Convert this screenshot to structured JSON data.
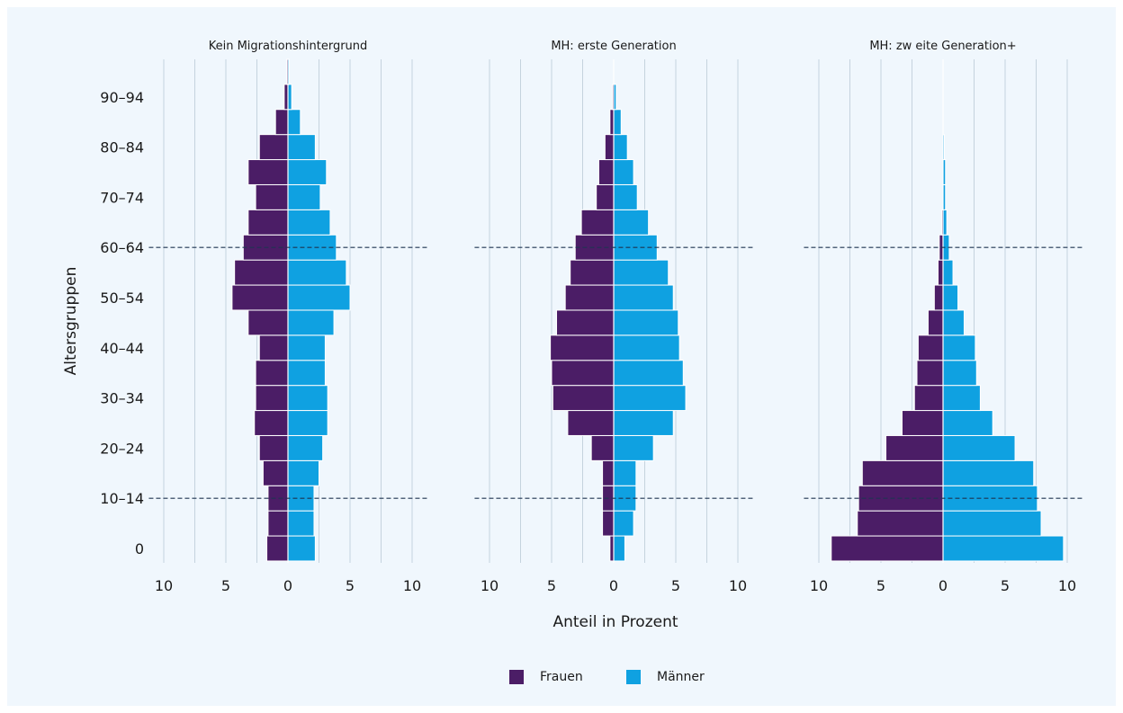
{
  "chart_data": {
    "type": "bar",
    "orientation": "horizontal",
    "subtype": "population-pyramid",
    "ylabel": "Altersgruppen",
    "xlabel": "Anteil in Prozent",
    "xlim": [
      -10,
      10
    ],
    "x_ticks": [
      "10",
      "5",
      "0",
      "5",
      "10"
    ],
    "y_tick_labels": [
      "0",
      "10–14",
      "20–24",
      "30–34",
      "40–44",
      "50–54",
      "60–64",
      "70–74",
      "80–84",
      "90–94"
    ],
    "age_groups": [
      "0-4",
      "5-9",
      "10-14",
      "15-19",
      "20-24",
      "25-29",
      "30-34",
      "35-39",
      "40-44",
      "45-49",
      "50-54",
      "55-59",
      "60-64",
      "65-69",
      "70-74",
      "75-79",
      "80-84",
      "85-89",
      "90-94",
      "95+"
    ],
    "reference_lines_at_age": [
      12.5,
      62.5
    ],
    "grid": true,
    "legend_position": "bottom",
    "colors": {
      "frauen": "#4b1d66",
      "maenner": "#0fa1e1",
      "background": "#f0f7fd",
      "grid": "#c5d3de",
      "reference_line": "#1f3552"
    },
    "legend": {
      "frauen": "Frauen",
      "maenner": "Männer"
    },
    "panels": [
      {
        "title": "Kein Migrationshintergrund",
        "series": [
          {
            "name": "Frauen",
            "values": [
              1.7,
              1.6,
              1.6,
              2.0,
              2.3,
              2.7,
              2.6,
              2.6,
              2.3,
              3.2,
              4.5,
              4.3,
              3.6,
              3.2,
              2.6,
              3.2,
              2.3,
              1.0,
              0.3,
              0.1
            ]
          },
          {
            "name": "Männer",
            "values": [
              2.2,
              2.1,
              2.1,
              2.5,
              2.8,
              3.2,
              3.2,
              3.0,
              3.0,
              3.7,
              5.0,
              4.7,
              3.9,
              3.4,
              2.6,
              3.1,
              2.2,
              1.0,
              0.3,
              0.1
            ]
          }
        ]
      },
      {
        "title": "MH: erste Generation",
        "series": [
          {
            "name": "Frauen",
            "values": [
              0.3,
              0.9,
              0.9,
              0.9,
              1.8,
              3.7,
              4.9,
              5.0,
              5.1,
              4.6,
              3.9,
              3.5,
              3.1,
              2.6,
              1.4,
              1.2,
              0.7,
              0.3,
              0.1,
              0.0
            ]
          },
          {
            "name": "Männer",
            "values": [
              0.9,
              1.6,
              1.8,
              1.8,
              3.2,
              4.8,
              5.8,
              5.6,
              5.3,
              5.2,
              4.8,
              4.4,
              3.5,
              2.8,
              1.9,
              1.6,
              1.1,
              0.6,
              0.2,
              0.0
            ]
          }
        ]
      },
      {
        "title": "MH: zw eite Generation+",
        "series": [
          {
            "name": "Frauen",
            "values": [
              9.0,
              6.9,
              6.8,
              6.5,
              4.6,
              3.3,
              2.3,
              2.1,
              2.0,
              1.2,
              0.7,
              0.4,
              0.3,
              0.1,
              0.0,
              0.0,
              0.0,
              0.0,
              0.0,
              0.0
            ]
          },
          {
            "name": "Männer",
            "values": [
              9.7,
              7.9,
              7.6,
              7.3,
              5.8,
              4.0,
              3.0,
              2.7,
              2.6,
              1.7,
              1.2,
              0.8,
              0.5,
              0.3,
              0.2,
              0.2,
              0.1,
              0.0,
              0.0,
              0.0
            ]
          }
        ]
      }
    ]
  }
}
